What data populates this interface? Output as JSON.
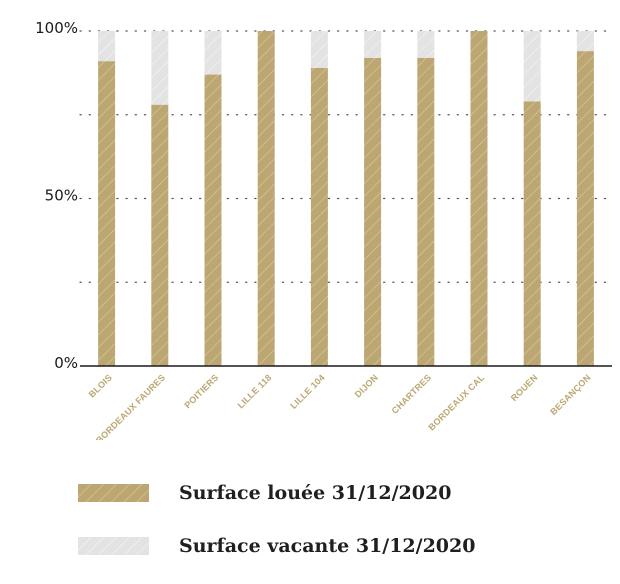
{
  "chart_data": {
    "type": "bar",
    "stacked": true,
    "percent": true,
    "categories": [
      "BLOIS",
      "BORDEAUX FAURES",
      "POITIERS",
      "LILLE 118",
      "LILLE 104",
      "DIJON",
      "CHARTRES",
      "BORDEAUX CAL",
      "ROUEN",
      "BESANÇON"
    ],
    "series": [
      {
        "name": "Surface louée 31/12/2020",
        "color": "#bca772",
        "pattern": "hatched",
        "values": [
          91,
          78,
          87,
          100,
          89,
          92,
          92,
          100,
          79,
          94
        ]
      },
      {
        "name": "Surface vacante 31/12/2020",
        "color": "#e3e3e3",
        "pattern": "hatched",
        "values": [
          9,
          22,
          13,
          0,
          11,
          8,
          8,
          0,
          21,
          6
        ]
      }
    ],
    "yticks": [
      "0%",
      "50%",
      "100%"
    ],
    "ylim": [
      0,
      100
    ],
    "grid": "dotted",
    "legend_position": "bottom"
  },
  "colors": {
    "axis": "#1a1a1a",
    "tick_label": "#bca772",
    "grid": "#555555"
  }
}
